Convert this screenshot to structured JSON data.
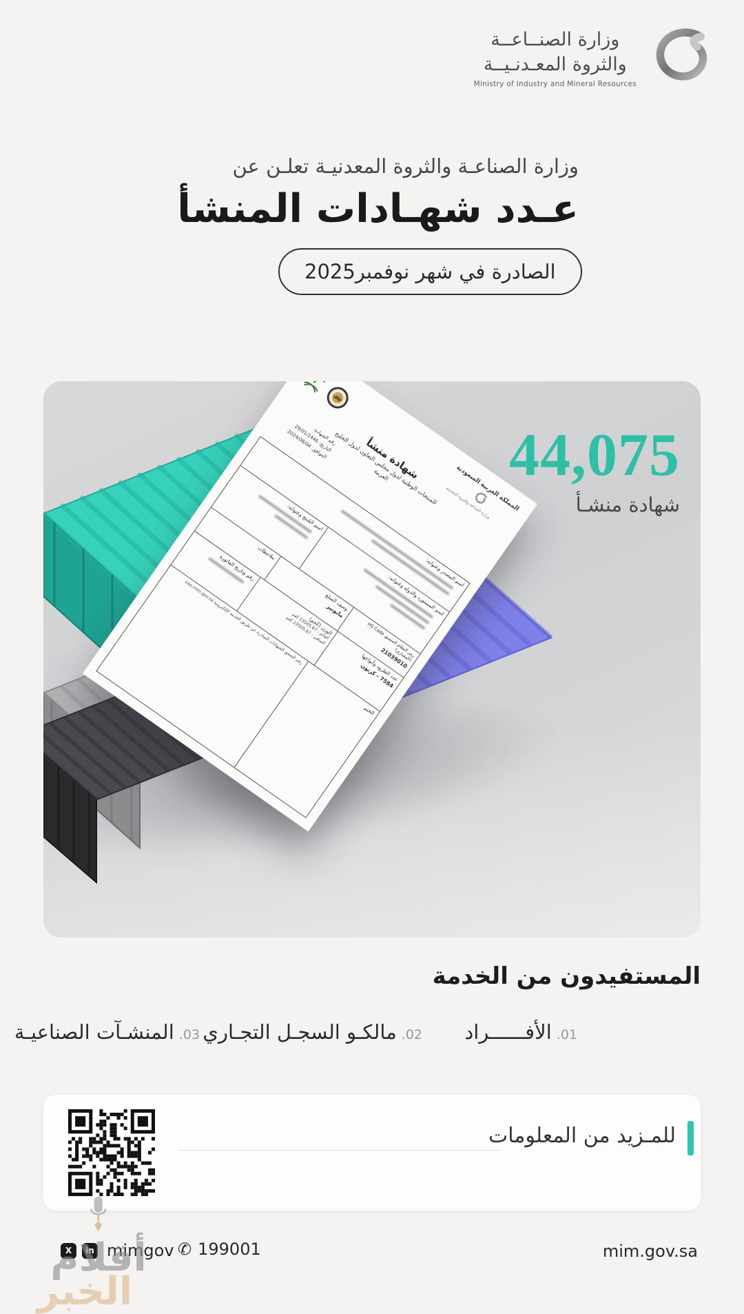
{
  "brand": {
    "ministry_ar_line1": "وزارة الصنــاعــة",
    "ministry_ar_line2": "والثروة المعـدنـيــة",
    "ministry_en": "Ministry of Industry and Mineral Resources"
  },
  "hero": {
    "intro": "وزارة الصناعـة والثروة المعدنيـة تعلـن عن",
    "title": "عـدد شهـادات المنشأ",
    "badge": "الصادرة في شهر نوفمبر2025"
  },
  "stat": {
    "value": "44,075",
    "unit": "شهادة منشـأ",
    "accent_color": "#2FBFA6"
  },
  "paper": {
    "kingdom": "المملكة العربية السعودية",
    "ministry_small": "وزارة الصناعة والثروة المعدنية",
    "title": "شهادة منشأ",
    "subtitle": "للمنتجات الوطنية لدول مجلس التعاون لدول الخليج العربية",
    "cert_no_label": "رقم الشهادة:",
    "date_hijri": "التاريخ: 29/01/1446",
    "date_greg": "الموافق: 2024/08/04",
    "exporter_label": "اسم المصدر وعنوانه:",
    "importer_label": "اسم المستورد والدولة وعنوانه:",
    "producer_label": "اسم المُنتج وعنوانه:",
    "notes_label": "ملاحظات",
    "invoice_label": "رقم وتاريخ الفاتورة",
    "packages_label": "عدد الطرود وأنواعها",
    "packages_value": "7584 - كرتون",
    "goods_label": "وصف السلع",
    "goods_value": "مايونيز",
    "hs_label": "رمز النظام المنسق HS Code (المعياري)",
    "hs_value": "21039010",
    "weight_label": "الوزن (كجم)",
    "gross_label": "القائم",
    "gross_value": "23505.67 كغم",
    "net_label": "الصافي",
    "net_value": "23505.67 كغم",
    "stamp_label": "الختم",
    "verify_note": "رقم التحقق للشهادات الصادرة عن طريق الخدمة الإلكترونية coo.mim.gov.sa"
  },
  "beneficiaries": {
    "heading": "المستفيدون من الخدمة",
    "items": [
      {
        "num": "01.",
        "label": "الأفــــــراد"
      },
      {
        "num": "02.",
        "label": "مالكـو السجـل التجـاري"
      },
      {
        "num": "03.",
        "label": "المنشـآت الصناعيـة"
      }
    ]
  },
  "more_info": {
    "label": "للمـزيد من المعلومات"
  },
  "footer": {
    "social_handle": "mimgov",
    "x_glyph": "X",
    "linkedin_glyph": "in",
    "phone_glyph": "✆",
    "phone": "199001",
    "website": "mim.gov.sa"
  },
  "watermark": {
    "line1": "أقلام",
    "line2": "الخبر"
  },
  "colors": {
    "accent_teal": "#2FBFA6",
    "container_teal": "#36d2bb",
    "container_purple": "#7f81ea",
    "container_gray": "#b3b3b5",
    "container_black": "#4a4a4e"
  }
}
